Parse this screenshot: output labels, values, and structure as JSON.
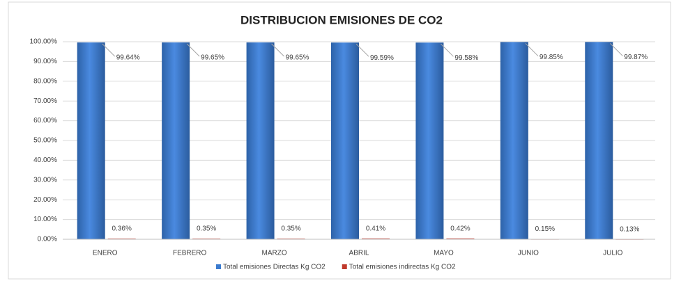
{
  "chart_data": {
    "type": "bar",
    "title": "DISTRIBUCION EMISIONES DE CO2",
    "categories": [
      "ENERO",
      "FEBRERO",
      "MARZO",
      "ABRIL",
      "MAYO",
      "JUNIO",
      "JULIO"
    ],
    "series": [
      {
        "name": "Total emisiones Directas Kg CO2",
        "color": "#3b7bcf",
        "values": [
          99.64,
          99.65,
          99.65,
          99.59,
          99.58,
          99.85,
          99.87
        ],
        "value_labels": [
          "99.64%",
          "99.65%",
          "99.65%",
          "99.59%",
          "99.58%",
          "99.85%",
          "99.87%"
        ]
      },
      {
        "name": "Total emisiones indirectas Kg CO2",
        "color": "#c0392b",
        "values": [
          0.36,
          0.35,
          0.35,
          0.41,
          0.42,
          0.15,
          0.13
        ],
        "value_labels": [
          "0.36%",
          "0.35%",
          "0.35%",
          "0.41%",
          "0.42%",
          "0.15%",
          "0.13%"
        ]
      }
    ],
    "ylim": [
      0,
      100
    ],
    "yticks": [
      {
        "value": 0,
        "label": "0.00%"
      },
      {
        "value": 10,
        "label": "10.00%"
      },
      {
        "value": 20,
        "label": "20.00%"
      },
      {
        "value": 30,
        "label": "30.00%"
      },
      {
        "value": 40,
        "label": "40.00%"
      },
      {
        "value": 50,
        "label": "50.00%"
      },
      {
        "value": 60,
        "label": "60.00%"
      },
      {
        "value": 70,
        "label": "70.00%"
      },
      {
        "value": 80,
        "label": "80.00%"
      },
      {
        "value": 90,
        "label": "90.00%"
      },
      {
        "value": 100,
        "label": "100.00%"
      }
    ],
    "grid": true,
    "legend": "bottom"
  }
}
